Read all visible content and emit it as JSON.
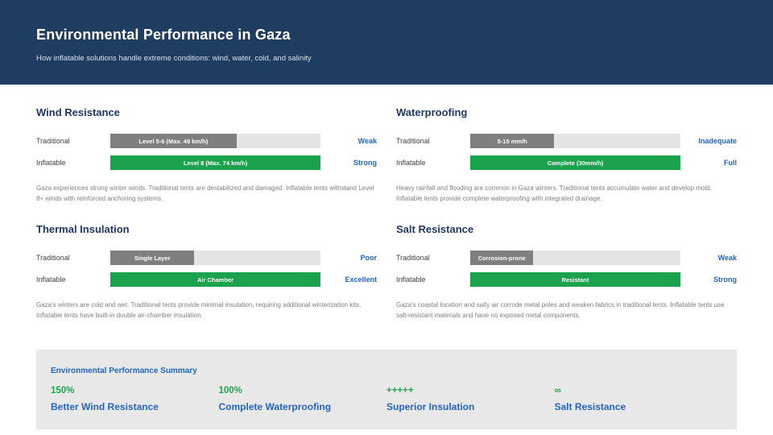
{
  "colors": {
    "header_bg": "#1E3D61",
    "section_title_navy": "#1F3864",
    "accent_blue": "#2465C0",
    "accent_green": "#1CA24D",
    "bar_gray": "#7F7F7F",
    "bar_track": "#E4E4E4",
    "description_gray": "#7F7F7F",
    "summary_bg": "#E8E8E8"
  },
  "header": {
    "title": "Environmental Performance in Gaza",
    "subtitle": "How inflatable solutions handle extreme conditions: wind, water, cold, and salinity"
  },
  "sections": [
    {
      "title": "Wind Resistance",
      "rows": [
        {
          "label": "Traditional",
          "bar_label": "Level 5-6 (Max. 49 km/h)",
          "fill_pct": 60,
          "rating": "Weak"
        },
        {
          "label": "Inflatable",
          "bar_label": "Level 8 (Max. 74 km/h)",
          "fill_pct": 100,
          "rating": "Strong"
        }
      ],
      "description": "Gaza experiences strong winter winds. Traditional tents are destabilized and damaged. Inflatable tents withstand Level 8+ winds with reinforced anchoring systems."
    },
    {
      "title": "Waterproofing",
      "rows": [
        {
          "label": "Traditional",
          "bar_label": "5-15 mm/h",
          "fill_pct": 40,
          "rating": "Inadequate"
        },
        {
          "label": "Inflatable",
          "bar_label": "Complete (30mm/h)",
          "fill_pct": 100,
          "rating": "Full"
        }
      ],
      "description": "Heavy rainfall and flooding are common in Gaza winters. Traditional tents accumulate water and develop mold. Inflatable tents provide complete waterproofing with integrated drainage."
    },
    {
      "title": "Thermal Insulation",
      "rows": [
        {
          "label": "Traditional",
          "bar_label": "Single Layer",
          "fill_pct": 40,
          "rating": "Poor"
        },
        {
          "label": "Inflatable",
          "bar_label": "Air Chamber",
          "fill_pct": 100,
          "rating": "Excellent"
        }
      ],
      "description": "Gaza's winters are cold and wet. Traditional tents provide minimal insulation, requiring additional winterization kits. Inflatable tents have built-in double air-chamber insulation."
    },
    {
      "title": "Salt Resistance",
      "rows": [
        {
          "label": "Traditional",
          "bar_label": "Corrosion-prone",
          "fill_pct": 30,
          "rating": "Weak"
        },
        {
          "label": "Inflatable",
          "bar_label": "Resistant",
          "fill_pct": 100,
          "rating": "Strong"
        }
      ],
      "description": "Gaza's coastal location and salty air corrode metal poles and weaken fabrics in traditional tents. Inflatable tents use salt-resistant materials and have no exposed metal components."
    }
  ],
  "summary": {
    "title": "Environmental Performance Summary",
    "stats": [
      {
        "value": "150%",
        "label": "Better Wind Resistance"
      },
      {
        "value": "100%",
        "label": "Complete Waterproofing"
      },
      {
        "value": "+++++",
        "label": "Superior Insulation"
      },
      {
        "value": "∞",
        "label": "Salt Resistance"
      }
    ]
  }
}
